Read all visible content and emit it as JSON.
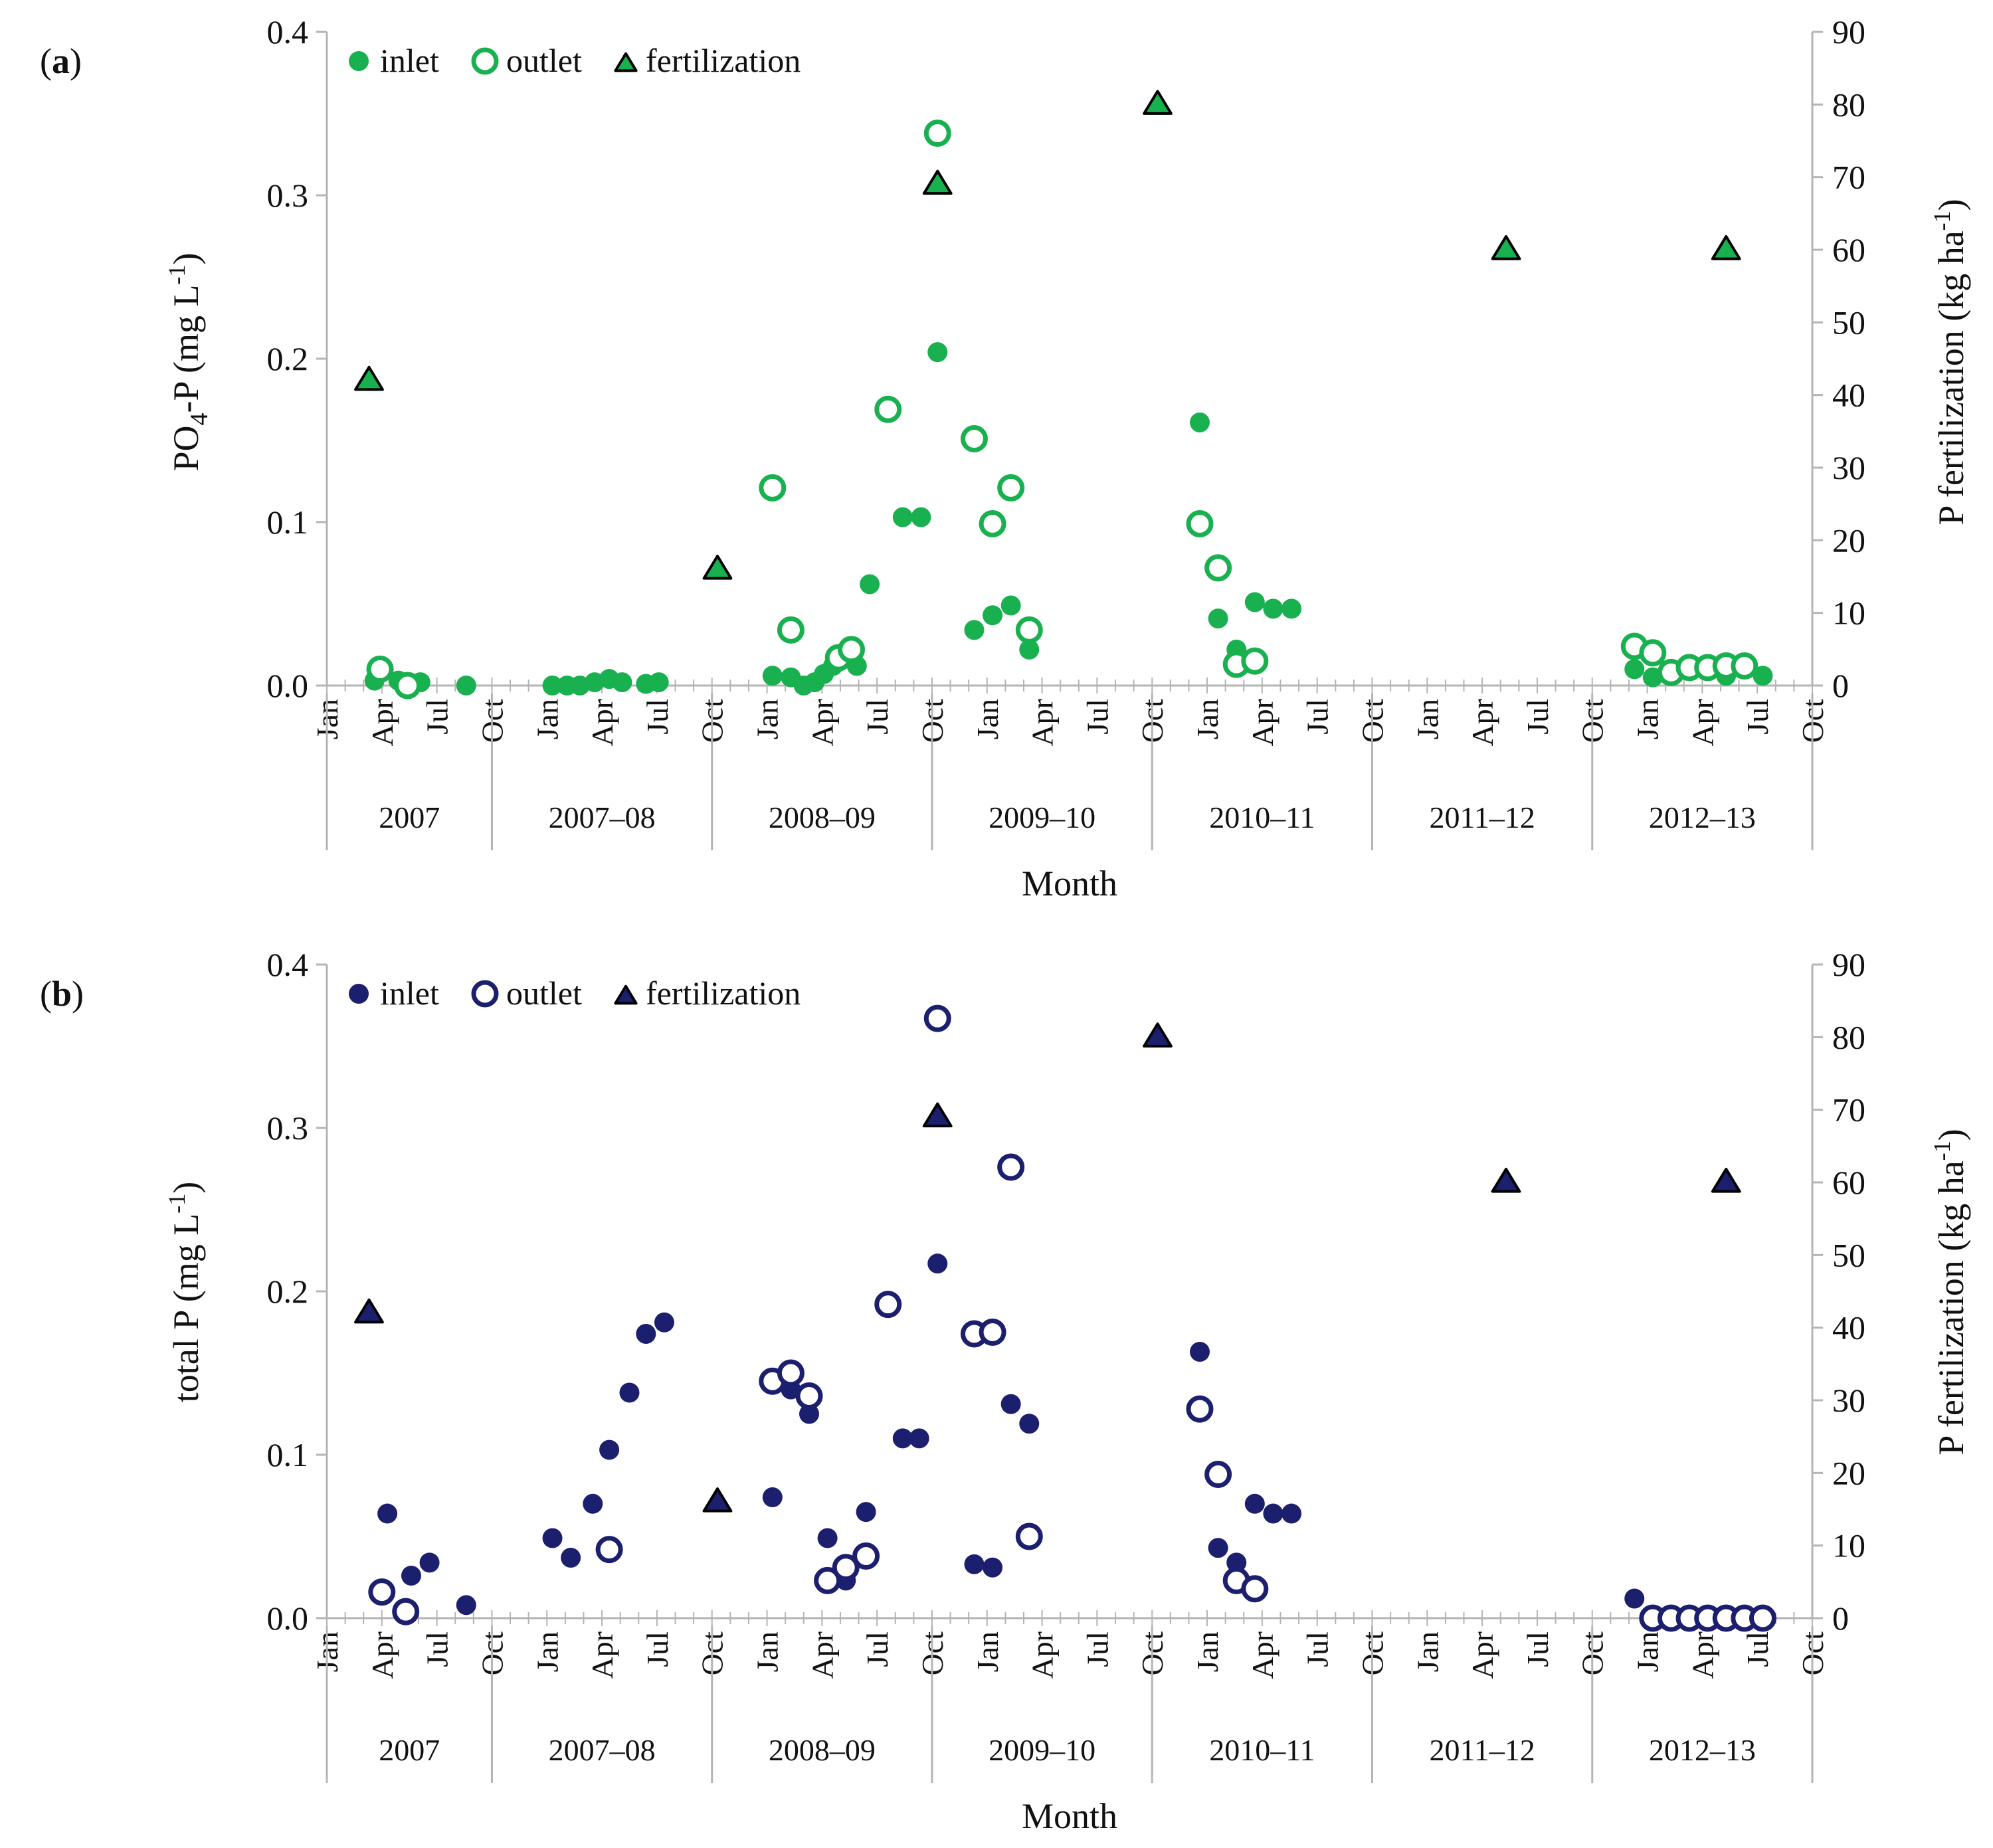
{
  "figure": {
    "x_axis_title": "Month",
    "month_labels": [
      "Jan",
      "Apr",
      "Jul",
      "Oct",
      "Jan",
      "Apr",
      "Jul",
      "Oct",
      "Jan",
      "Apr",
      "Jul",
      "Oct",
      "Jan",
      "Apr",
      "Jul",
      "Oct",
      "Jan",
      "Apr",
      "Jul",
      "Oct",
      "Jan",
      "Apr",
      "Jul",
      "Oct",
      "Jan",
      "Apr",
      "Jul",
      "Oct"
    ],
    "year_groups": [
      "2007",
      "2007–08",
      "2008–09",
      "2009–10",
      "2010–11",
      "2011–12",
      "2012–13"
    ]
  },
  "colors": {
    "panel_a": "#19b04f",
    "panel_b": "#1b1f6e"
  },
  "chart_data": [
    {
      "type": "scatter",
      "panel_label": "(a)",
      "panel_letter": "a",
      "title": "",
      "xlabel": "Month",
      "ylabel": "PO4-P (mg L-1)",
      "ylabel_parts": {
        "base": "PO",
        "sub": "4",
        "rest": "-P (mg L",
        "sup": "-1",
        "end": ")"
      },
      "y2label": "P fertilization (kg ha-1)",
      "y2label_parts": {
        "base": "P fertilization (kg ha",
        "sup": "-1",
        "end": ")"
      },
      "x_unit": "months since Jan 2007",
      "xlim": [
        0,
        81
      ],
      "ylim": [
        0,
        0.4
      ],
      "y2lim": [
        0,
        90
      ],
      "y_ticks": [
        "0.0",
        "0.1",
        "0.2",
        "0.3",
        "0.4"
      ],
      "y2_ticks": [
        "0",
        "10",
        "20",
        "30",
        "40",
        "50",
        "60",
        "70",
        "80",
        "90"
      ],
      "legend": [
        "inlet",
        "outlet",
        "fertilization"
      ],
      "legend_position": "top-left",
      "series": [
        {
          "name": "inlet",
          "marker": "filled-circle",
          "x": [
            2.6,
            3.9,
            5.1,
            7.6,
            12.3,
            13.1,
            13.8,
            14.6,
            15.4,
            16.1,
            17.4,
            18.1,
            24.3,
            25.3,
            26.0,
            26.6,
            27.1,
            27.6,
            28.1,
            28.9,
            29.6,
            31.4,
            32.4,
            33.3,
            35.3,
            36.3,
            37.3,
            38.3,
            47.6,
            48.6,
            49.6,
            50.6,
            51.6,
            52.6,
            71.3,
            72.3,
            73.3,
            74.3,
            75.3,
            76.3,
            77.3,
            78.3
          ],
          "y": [
            0.003,
            0.003,
            0.002,
            0.0,
            0.0,
            0.0,
            0.0,
            0.002,
            0.004,
            0.002,
            0.001,
            0.002,
            0.006,
            0.005,
            0.0,
            0.002,
            0.007,
            0.012,
            0.018,
            0.012,
            0.062,
            0.103,
            0.103,
            0.204,
            0.034,
            0.043,
            0.049,
            0.022,
            0.161,
            0.041,
            0.022,
            0.051,
            0.047,
            0.047,
            0.01,
            0.005,
            0.006,
            0.011,
            0.013,
            0.006,
            0.01,
            0.006
          ]
        },
        {
          "name": "outlet",
          "marker": "open-circle",
          "x": [
            2.9,
            4.4,
            24.3,
            25.3,
            27.9,
            28.6,
            30.6,
            33.3,
            35.3,
            36.3,
            37.3,
            38.3,
            47.6,
            48.6,
            49.6,
            50.6,
            71.3,
            72.3,
            73.3,
            74.3,
            75.3,
            76.3,
            77.3
          ],
          "y": [
            0.01,
            0.0,
            0.121,
            0.034,
            0.017,
            0.022,
            0.169,
            0.338,
            0.151,
            0.099,
            0.121,
            0.034,
            0.099,
            0.072,
            0.013,
            0.015,
            0.024,
            0.02,
            0.008,
            0.011,
            0.011,
            0.012,
            0.012
          ]
        },
        {
          "name": "fertilization",
          "marker": "triangle",
          "axis": "right",
          "x": [
            2.3,
            21.3,
            33.3,
            45.3,
            64.3,
            76.3
          ],
          "y": [
            42,
            16,
            69,
            80,
            60,
            60
          ]
        }
      ]
    },
    {
      "type": "scatter",
      "panel_label": "(b)",
      "panel_letter": "b",
      "title": "",
      "xlabel": "Month",
      "ylabel": "total P (mg L-1)",
      "ylabel_parts": {
        "base": "total P (mg L",
        "sub": "",
        "rest": "",
        "sup": "-1",
        "end": ")"
      },
      "y2label": "P fertilization (kg ha-1)",
      "y2label_parts": {
        "base": "P fertilization (kg ha",
        "sup": "-1",
        "end": ")"
      },
      "x_unit": "months since Jan 2007",
      "xlim": [
        0,
        81
      ],
      "ylim": [
        0,
        0.4
      ],
      "y2lim": [
        0,
        90
      ],
      "y_ticks": [
        "0.0",
        "0.1",
        "0.2",
        "0.3",
        "0.4"
      ],
      "y2_ticks": [
        "0",
        "10",
        "20",
        "30",
        "40",
        "50",
        "60",
        "70",
        "80",
        "90"
      ],
      "legend": [
        "inlet",
        "outlet",
        "fertilization"
      ],
      "legend_position": "top-left",
      "series": [
        {
          "name": "inlet",
          "marker": "filled-circle",
          "x": [
            3.3,
            4.6,
            5.6,
            7.6,
            12.3,
            13.3,
            14.5,
            15.4,
            16.5,
            17.4,
            18.4,
            24.3,
            25.3,
            26.3,
            27.3,
            28.3,
            29.4,
            31.4,
            32.3,
            33.3,
            35.3,
            36.3,
            37.3,
            38.3,
            47.6,
            48.6,
            49.6,
            50.6,
            51.6,
            52.6,
            71.3
          ],
          "y": [
            0.064,
            0.026,
            0.034,
            0.008,
            0.049,
            0.037,
            0.07,
            0.103,
            0.138,
            0.174,
            0.181,
            0.074,
            0.14,
            0.125,
            0.049,
            0.023,
            0.065,
            0.11,
            0.11,
            0.217,
            0.033,
            0.031,
            0.131,
            0.119,
            0.163,
            0.043,
            0.034,
            0.07,
            0.064,
            0.064,
            0.012
          ]
        },
        {
          "name": "outlet",
          "marker": "open-circle",
          "x": [
            3.0,
            4.3,
            15.4,
            24.3,
            25.3,
            26.3,
            27.3,
            28.3,
            29.4,
            30.6,
            33.3,
            35.3,
            36.3,
            37.3,
            38.3,
            47.6,
            48.6,
            49.6,
            50.6,
            72.3,
            73.3,
            74.3,
            75.3,
            76.3,
            77.3,
            78.3
          ],
          "y": [
            0.016,
            0.004,
            0.042,
            0.145,
            0.15,
            0.136,
            0.023,
            0.031,
            0.038,
            0.192,
            0.367,
            0.174,
            0.175,
            0.276,
            0.05,
            0.128,
            0.088,
            0.023,
            0.018,
            0.0,
            0.0,
            0.0,
            0.0,
            0.0,
            0.0,
            0.0
          ]
        },
        {
          "name": "fertilization",
          "marker": "triangle",
          "axis": "right",
          "x": [
            2.3,
            21.3,
            33.3,
            45.3,
            64.3,
            76.3
          ],
          "y": [
            42,
            16,
            69,
            80,
            60,
            60
          ]
        }
      ]
    }
  ]
}
